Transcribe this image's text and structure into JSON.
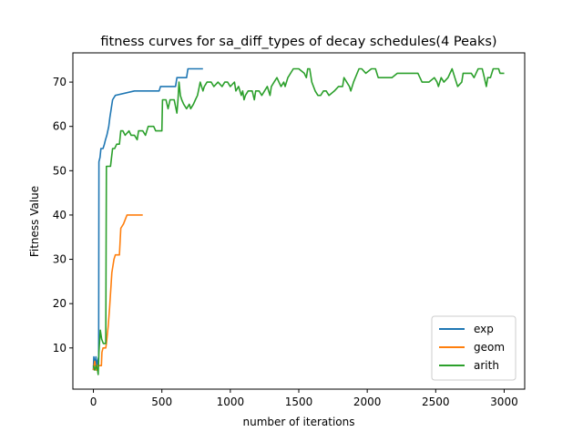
{
  "chart_data": {
    "type": "line",
    "title": "fitness curves for sa_diff_types of decay schedules(4 Peaks)",
    "xlabel": "number of iterations",
    "ylabel": "Fitness Value",
    "xlim": [
      -150,
      3150
    ],
    "ylim": [
      0.7,
      76.6
    ],
    "xticks": [
      0,
      500,
      1000,
      1500,
      2000,
      2500,
      3000
    ],
    "yticks": [
      10,
      20,
      30,
      40,
      50,
      60,
      70
    ],
    "grid": false,
    "legend_position": "lower-right",
    "series": [
      {
        "name": "exp",
        "color": "#1f77b4",
        "points": [
          [
            0,
            5
          ],
          [
            3,
            8
          ],
          [
            10,
            6
          ],
          [
            18,
            8
          ],
          [
            26,
            5
          ],
          [
            30,
            7
          ],
          [
            38,
            8
          ],
          [
            40,
            52
          ],
          [
            48,
            53
          ],
          [
            55,
            55
          ],
          [
            70,
            55
          ],
          [
            80,
            56
          ],
          [
            88,
            57
          ],
          [
            98,
            58
          ],
          [
            112,
            60
          ],
          [
            120,
            62
          ],
          [
            130,
            64
          ],
          [
            140,
            66
          ],
          [
            160,
            67
          ],
          [
            300,
            68
          ],
          [
            480,
            68
          ],
          [
            490,
            69
          ],
          [
            600,
            69
          ],
          [
            610,
            71
          ],
          [
            680,
            71
          ],
          [
            690,
            73
          ],
          [
            800,
            73
          ]
        ]
      },
      {
        "name": "geom",
        "color": "#ff7f0e",
        "points": [
          [
            0,
            5
          ],
          [
            10,
            7
          ],
          [
            20,
            5
          ],
          [
            30,
            6
          ],
          [
            58,
            6
          ],
          [
            62,
            9
          ],
          [
            70,
            10
          ],
          [
            90,
            10
          ],
          [
            95,
            11
          ],
          [
            108,
            15
          ],
          [
            118,
            19
          ],
          [
            135,
            27
          ],
          [
            150,
            30
          ],
          [
            160,
            31
          ],
          [
            190,
            31
          ],
          [
            200,
            37
          ],
          [
            220,
            38
          ],
          [
            245,
            40
          ],
          [
            360,
            40
          ]
        ]
      },
      {
        "name": "arith",
        "color": "#2ca02c",
        "points": [
          [
            0,
            6
          ],
          [
            10,
            5
          ],
          [
            20,
            6
          ],
          [
            30,
            5
          ],
          [
            35,
            4
          ],
          [
            40,
            9
          ],
          [
            50,
            14
          ],
          [
            60,
            12
          ],
          [
            72,
            11
          ],
          [
            90,
            11
          ],
          [
            95,
            51
          ],
          [
            108,
            51
          ],
          [
            125,
            51
          ],
          [
            140,
            55
          ],
          [
            155,
            55
          ],
          [
            170,
            56
          ],
          [
            190,
            56
          ],
          [
            200,
            59
          ],
          [
            215,
            59
          ],
          [
            232,
            58
          ],
          [
            260,
            59
          ],
          [
            275,
            58
          ],
          [
            300,
            58
          ],
          [
            320,
            57
          ],
          [
            330,
            59
          ],
          [
            360,
            59
          ],
          [
            380,
            58
          ],
          [
            400,
            60
          ],
          [
            430,
            60
          ],
          [
            440,
            60
          ],
          [
            455,
            59
          ],
          [
            500,
            59
          ],
          [
            505,
            66
          ],
          [
            530,
            66
          ],
          [
            545,
            64
          ],
          [
            560,
            66
          ],
          [
            590,
            66
          ],
          [
            610,
            63
          ],
          [
            618,
            66
          ],
          [
            625,
            70
          ],
          [
            635,
            67
          ],
          [
            645,
            66
          ],
          [
            660,
            65
          ],
          [
            680,
            64
          ],
          [
            700,
            65
          ],
          [
            710,
            64
          ],
          [
            730,
            65
          ],
          [
            745,
            66
          ],
          [
            760,
            67
          ],
          [
            780,
            70
          ],
          [
            800,
            68
          ],
          [
            810,
            69
          ],
          [
            830,
            70
          ],
          [
            860,
            70
          ],
          [
            880,
            69
          ],
          [
            910,
            70
          ],
          [
            940,
            69
          ],
          [
            960,
            70
          ],
          [
            980,
            70
          ],
          [
            1000,
            69
          ],
          [
            1030,
            70
          ],
          [
            1040,
            68
          ],
          [
            1060,
            69
          ],
          [
            1080,
            67
          ],
          [
            1090,
            68
          ],
          [
            1100,
            66
          ],
          [
            1110,
            67
          ],
          [
            1130,
            68
          ],
          [
            1160,
            68
          ],
          [
            1175,
            66
          ],
          [
            1185,
            68
          ],
          [
            1210,
            68
          ],
          [
            1230,
            67
          ],
          [
            1250,
            68
          ],
          [
            1270,
            69
          ],
          [
            1290,
            67
          ],
          [
            1300,
            69
          ],
          [
            1320,
            70
          ],
          [
            1340,
            71
          ],
          [
            1355,
            70
          ],
          [
            1370,
            69
          ],
          [
            1390,
            70
          ],
          [
            1400,
            69
          ],
          [
            1420,
            71
          ],
          [
            1460,
            73
          ],
          [
            1500,
            73
          ],
          [
            1540,
            72
          ],
          [
            1555,
            71
          ],
          [
            1565,
            73
          ],
          [
            1580,
            73
          ],
          [
            1595,
            70
          ],
          [
            1620,
            68
          ],
          [
            1640,
            67
          ],
          [
            1660,
            67
          ],
          [
            1680,
            68
          ],
          [
            1700,
            68
          ],
          [
            1720,
            67
          ],
          [
            1760,
            68
          ],
          [
            1790,
            69
          ],
          [
            1820,
            69
          ],
          [
            1830,
            71
          ],
          [
            1850,
            70
          ],
          [
            1870,
            69
          ],
          [
            1880,
            68
          ],
          [
            1900,
            70
          ],
          [
            1940,
            73
          ],
          [
            1960,
            73
          ],
          [
            1990,
            72
          ],
          [
            2030,
            73
          ],
          [
            2060,
            73
          ],
          [
            2080,
            71
          ],
          [
            2130,
            71
          ],
          [
            2180,
            71
          ],
          [
            2220,
            72
          ],
          [
            2250,
            72
          ],
          [
            2260,
            72
          ],
          [
            2300,
            72
          ],
          [
            2370,
            72
          ],
          [
            2400,
            70
          ],
          [
            2450,
            70
          ],
          [
            2490,
            71
          ],
          [
            2510,
            70
          ],
          [
            2520,
            69
          ],
          [
            2540,
            71
          ],
          [
            2560,
            70
          ],
          [
            2590,
            71
          ],
          [
            2620,
            73
          ],
          [
            2640,
            71
          ],
          [
            2660,
            69
          ],
          [
            2690,
            70
          ],
          [
            2700,
            72
          ],
          [
            2720,
            72
          ],
          [
            2760,
            72
          ],
          [
            2780,
            71
          ],
          [
            2810,
            73
          ],
          [
            2840,
            73
          ],
          [
            2855,
            71
          ],
          [
            2870,
            69
          ],
          [
            2880,
            71
          ],
          [
            2900,
            71
          ],
          [
            2920,
            73
          ],
          [
            2960,
            73
          ],
          [
            2970,
            72
          ],
          [
            3000,
            72
          ]
        ]
      }
    ]
  }
}
